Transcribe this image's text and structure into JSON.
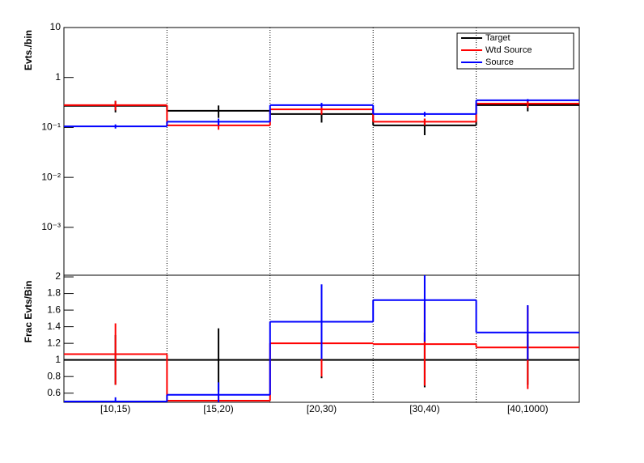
{
  "chart_data": [
    {
      "type": "step",
      "ylabel": "Evts./bin",
      "log_scale": true,
      "ylim": [
        0.00011,
        10
      ],
      "yticks": [
        {
          "value": 10,
          "label": "10"
        },
        {
          "value": 1,
          "label": "1"
        },
        {
          "value": 0.1,
          "label": "10⁻¹"
        },
        {
          "value": 0.01,
          "label": "10⁻²"
        },
        {
          "value": 0.001,
          "label": "10⁻³"
        }
      ],
      "legend": "top-right",
      "series": [
        {
          "name": "Target",
          "color": "#000000",
          "values": [
            0.27,
            0.215,
            0.185,
            0.11,
            0.28
          ],
          "errors": [
            0.07,
            0.06,
            0.06,
            0.04,
            0.07
          ]
        },
        {
          "name": "Wtd Source",
          "color": "#ff0000",
          "values": [
            0.28,
            0.11,
            0.23,
            0.13,
            0.3
          ],
          "errors": [
            0.06,
            0.02,
            0.05,
            0.02,
            0.05
          ]
        },
        {
          "name": "Source",
          "color": "#0000ff",
          "values": [
            0.105,
            0.13,
            0.28,
            0.185,
            0.35
          ],
          "errors": [
            0.01,
            0.02,
            0.03,
            0.02,
            0.02
          ]
        }
      ]
    },
    {
      "type": "step",
      "ylabel": "Frac Evts/Bin",
      "categories": [
        "[10,15)",
        "[15,20)",
        "[20,30)",
        "[30,40)",
        "[40,1000)"
      ],
      "ylim": [
        0.49,
        2.02
      ],
      "yticks": [
        0.6,
        0.8,
        1,
        1.2,
        1.4,
        1.6,
        1.8,
        2
      ],
      "series": [
        {
          "name": "Target",
          "color": "#000000",
          "values": [
            1,
            1,
            1,
            1,
            1
          ],
          "errors": [
            0.3,
            0.38,
            0.22,
            0.33,
            0.3
          ]
        },
        {
          "name": "Wtd Source",
          "color": "#ff0000",
          "values": [
            1.07,
            0.51,
            1.2,
            1.19,
            1.15
          ],
          "errors": [
            0.37,
            0.05,
            0.4,
            0.5,
            0.5
          ]
        },
        {
          "name": "Source",
          "color": "#0000ff",
          "values": [
            0.5,
            0.58,
            1.46,
            1.72,
            1.33
          ],
          "errors": [
            0.05,
            0.15,
            0.45,
            0.5,
            0.33
          ]
        }
      ]
    }
  ]
}
